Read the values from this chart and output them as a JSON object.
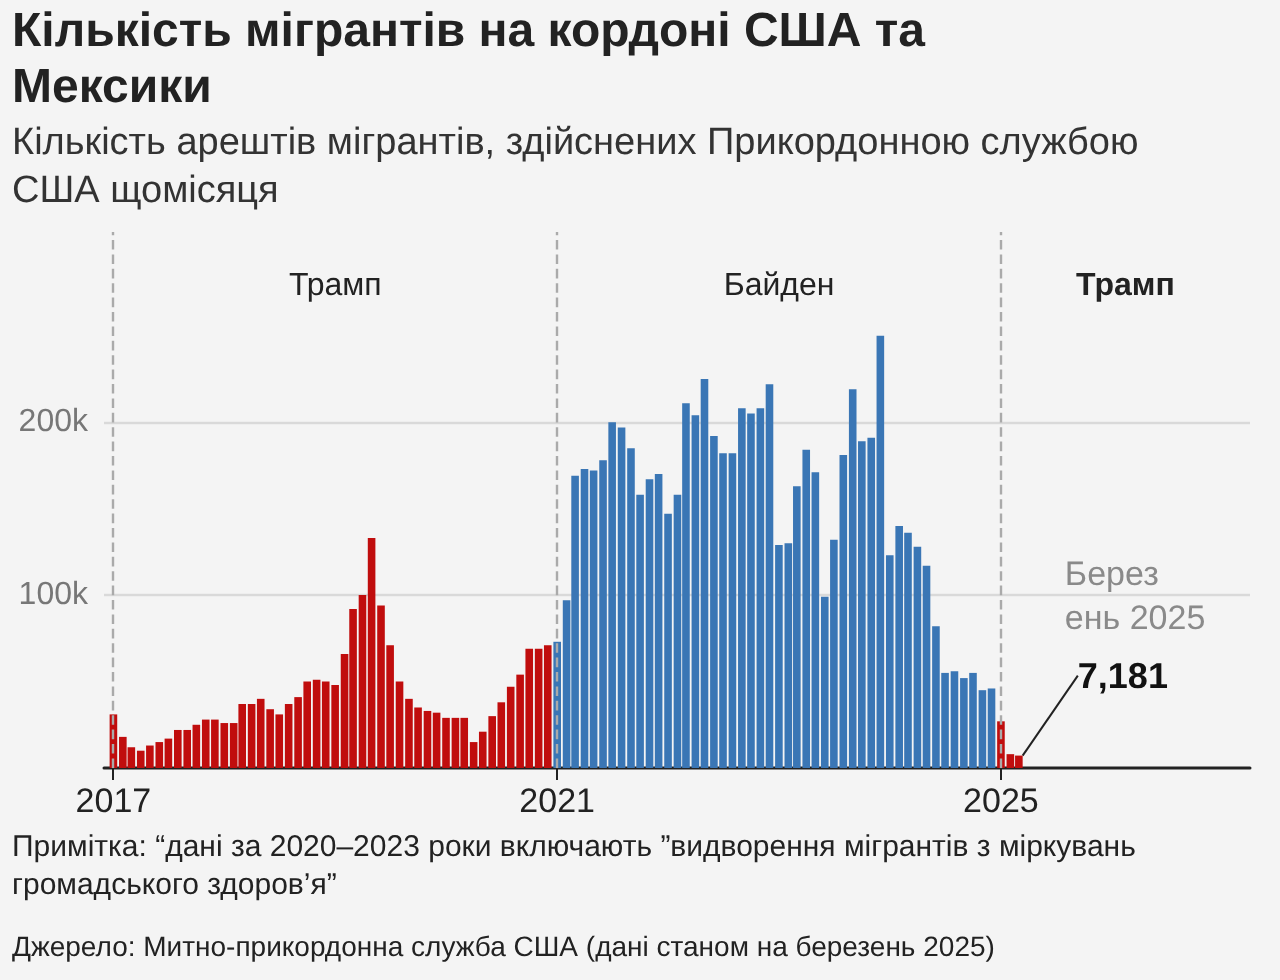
{
  "chart_data": {
    "type": "bar",
    "title": "Кількість мігрантів на кордоні США та Мексики",
    "subtitle": "Кількість арештів мігрантів, здійснених Прикордонною службою США щомісяця",
    "x": [
      "2017-01",
      "2017-02",
      "2017-03",
      "2017-04",
      "2017-05",
      "2017-06",
      "2017-07",
      "2017-08",
      "2017-09",
      "2017-10",
      "2017-11",
      "2017-12",
      "2018-01",
      "2018-02",
      "2018-03",
      "2018-04",
      "2018-05",
      "2018-06",
      "2018-07",
      "2018-08",
      "2018-09",
      "2018-10",
      "2018-11",
      "2018-12",
      "2019-01",
      "2019-02",
      "2019-03",
      "2019-04",
      "2019-05",
      "2019-06",
      "2019-07",
      "2019-08",
      "2019-09",
      "2019-10",
      "2019-11",
      "2019-12",
      "2020-01",
      "2020-02",
      "2020-03",
      "2020-04",
      "2020-05",
      "2020-06",
      "2020-07",
      "2020-08",
      "2020-09",
      "2020-10",
      "2020-11",
      "2020-12",
      "2021-01",
      "2021-02",
      "2021-03",
      "2021-04",
      "2021-05",
      "2021-06",
      "2021-07",
      "2021-08",
      "2021-09",
      "2021-10",
      "2021-11",
      "2021-12",
      "2022-01",
      "2022-02",
      "2022-03",
      "2022-04",
      "2022-05",
      "2022-06",
      "2022-07",
      "2022-08",
      "2022-09",
      "2022-10",
      "2022-11",
      "2022-12",
      "2023-01",
      "2023-02",
      "2023-03",
      "2023-04",
      "2023-05",
      "2023-06",
      "2023-07",
      "2023-08",
      "2023-09",
      "2023-10",
      "2023-11",
      "2023-12",
      "2024-01",
      "2024-02",
      "2024-03",
      "2024-04",
      "2024-05",
      "2024-06",
      "2024-07",
      "2024-08",
      "2024-09",
      "2024-10",
      "2024-11",
      "2024-12",
      "2025-01",
      "2025-02",
      "2025-03"
    ],
    "values": [
      31000,
      18000,
      12000,
      10000,
      13000,
      15000,
      17000,
      22000,
      22000,
      25000,
      28000,
      28000,
      26000,
      26000,
      37000,
      37000,
      40000,
      34000,
      31000,
      37000,
      41000,
      50000,
      51000,
      50000,
      48000,
      66000,
      92000,
      100000,
      133000,
      94000,
      71000,
      50000,
      40000,
      35000,
      33000,
      32000,
      29000,
      29000,
      29000,
      15000,
      21000,
      30000,
      38000,
      47000,
      54000,
      69000,
      69000,
      71000,
      73000,
      97000,
      169000,
      173000,
      172000,
      178000,
      200000,
      197000,
      185000,
      158000,
      167000,
      170000,
      147000,
      158000,
      211000,
      204000,
      225000,
      192000,
      182000,
      182000,
      208000,
      205000,
      208000,
      222000,
      129000,
      130000,
      163000,
      184000,
      171000,
      99000,
      132000,
      181000,
      219000,
      189000,
      191000,
      250000,
      123000,
      140000,
      136000,
      128000,
      117000,
      82000,
      55000,
      56000,
      52000,
      55000,
      45000,
      46000,
      27000,
      8000,
      7181
    ],
    "colors": [
      "#c00d0d",
      "#c00d0d",
      "#c00d0d",
      "#c00d0d",
      "#c00d0d",
      "#c00d0d",
      "#c00d0d",
      "#c00d0d",
      "#c00d0d",
      "#c00d0d",
      "#c00d0d",
      "#c00d0d",
      "#c00d0d",
      "#c00d0d",
      "#c00d0d",
      "#c00d0d",
      "#c00d0d",
      "#c00d0d",
      "#c00d0d",
      "#c00d0d",
      "#c00d0d",
      "#c00d0d",
      "#c00d0d",
      "#c00d0d",
      "#c00d0d",
      "#c00d0d",
      "#c00d0d",
      "#c00d0d",
      "#c00d0d",
      "#c00d0d",
      "#c00d0d",
      "#c00d0d",
      "#c00d0d",
      "#c00d0d",
      "#c00d0d",
      "#c00d0d",
      "#c00d0d",
      "#c00d0d",
      "#c00d0d",
      "#c00d0d",
      "#c00d0d",
      "#c00d0d",
      "#c00d0d",
      "#c00d0d",
      "#c00d0d",
      "#c00d0d",
      "#c00d0d",
      "#c00d0d",
      "#3a76b5",
      "#3a76b5",
      "#3a76b5",
      "#3a76b5",
      "#3a76b5",
      "#3a76b5",
      "#3a76b5",
      "#3a76b5",
      "#3a76b5",
      "#3a76b5",
      "#3a76b5",
      "#3a76b5",
      "#3a76b5",
      "#3a76b5",
      "#3a76b5",
      "#3a76b5",
      "#3a76b5",
      "#3a76b5",
      "#3a76b5",
      "#3a76b5",
      "#3a76b5",
      "#3a76b5",
      "#3a76b5",
      "#3a76b5",
      "#3a76b5",
      "#3a76b5",
      "#3a76b5",
      "#3a76b5",
      "#3a76b5",
      "#3a76b5",
      "#3a76b5",
      "#3a76b5",
      "#3a76b5",
      "#3a76b5",
      "#3a76b5",
      "#3a76b5",
      "#3a76b5",
      "#3a76b5",
      "#3a76b5",
      "#3a76b5",
      "#3a76b5",
      "#3a76b5",
      "#3a76b5",
      "#3a76b5",
      "#3a76b5",
      "#3a76b5",
      "#3a76b5",
      "#3a76b5",
      "#c00d0d",
      "#c00d0d",
      "#c00d0d"
    ],
    "value_labels": [
      null,
      null,
      null,
      null,
      null,
      null,
      null,
      null,
      null,
      null,
      null,
      null,
      null,
      null,
      null,
      null,
      null,
      null,
      null,
      null,
      null,
      null,
      null,
      null,
      null,
      null,
      null,
      null,
      null,
      null,
      null,
      null,
      null,
      null,
      null,
      null,
      null,
      null,
      null,
      null,
      null,
      null,
      null,
      null,
      null,
      null,
      null,
      null,
      null,
      null,
      null,
      null,
      null,
      null,
      null,
      null,
      null,
      null,
      null,
      null,
      null,
      null,
      null,
      null,
      null,
      null,
      null,
      null,
      null,
      null,
      null,
      null,
      null,
      null,
      null,
      null,
      null,
      null,
      null,
      null,
      null,
      null,
      null,
      null,
      null,
      null,
      null,
      null,
      null,
      null,
      null,
      null,
      null,
      null,
      null,
      null,
      null,
      null,
      "7,181"
    ],
    "xlim": [
      "2016-12",
      "2027-04"
    ],
    "xticks": [
      {
        "value": "2017-01",
        "label": "2017"
      },
      {
        "value": "2021-01",
        "label": "2021"
      },
      {
        "value": "2025-01",
        "label": "2025"
      }
    ],
    "ylim": [
      0,
      310000
    ],
    "yticks": [
      {
        "value": 100000,
        "label": "100k"
      },
      {
        "value": 200000,
        "label": "200k"
      }
    ],
    "grid": "y",
    "ref_lines": [
      {
        "axis": "x",
        "value": "2017-01",
        "line_style": "dashed",
        "color": "#aaaaaa"
      },
      {
        "axis": "x",
        "value": "2021-01",
        "line_style": "dashed",
        "color": "#aaaaaa"
      },
      {
        "axis": "x",
        "value": "2025-01",
        "line_style": "dashed",
        "color": "#aaaaaa"
      }
    ],
    "annotations": [
      "Трамп",
      "Байден",
      "Трамп",
      {
        "text": "Березень 2025",
        "x": "2025-03",
        "y": 7181
      },
      "Примітка: “дані за 2020–2023 роки включають ”видворення мігрантів з міркувань громадського здоров’я”",
      "Джерело: Митно-прикордонна служба США (дані станом на березень 2025)"
    ]
  }
}
